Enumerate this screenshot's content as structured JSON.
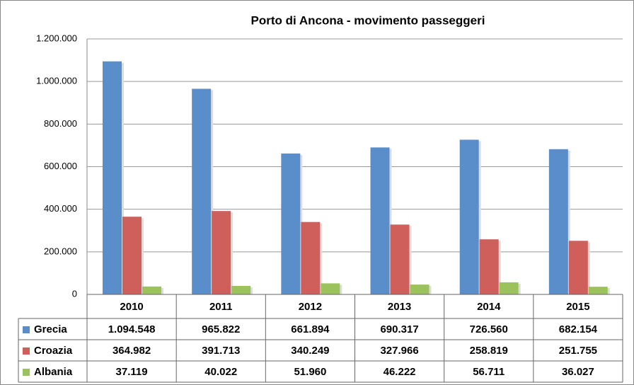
{
  "chart_data": {
    "type": "bar",
    "title": "Porto di Ancona - movimento passeggeri",
    "categories": [
      "2010",
      "2011",
      "2012",
      "2013",
      "2014",
      "2015"
    ],
    "series": [
      {
        "name": "Grecia",
        "color": "#5a8ecb",
        "values": [
          1094548,
          965822,
          661894,
          690317,
          726560,
          682154
        ],
        "value_labels": [
          "1.094.548",
          "965.822",
          "661.894",
          "690.317",
          "726.560",
          "682.154"
        ]
      },
      {
        "name": "Croazia",
        "color": "#cf5f5b",
        "values": [
          364982,
          391713,
          340249,
          327966,
          258819,
          251755
        ],
        "value_labels": [
          "364.982",
          "391.713",
          "340.249",
          "327.966",
          "258.819",
          "251.755"
        ]
      },
      {
        "name": "Albania",
        "color": "#9cc35b",
        "values": [
          37119,
          40022,
          51960,
          46222,
          56711,
          36027
        ],
        "value_labels": [
          "37.119",
          "40.022",
          "51.960",
          "46.222",
          "56.711",
          "36.027"
        ]
      }
    ],
    "ylim": [
      0,
      1200000
    ],
    "yticks": [
      0,
      {
        "value": 200000,
        "label": "200.000"
      },
      {
        "value": 400000,
        "label": "400.000"
      },
      {
        "value": 600000,
        "label": "600.000"
      },
      {
        "value": 800000,
        "label": "800.000"
      },
      {
        "value": 1000000,
        "label": "1.000.000"
      },
      {
        "value": 1200000,
        "label": "1.200.000"
      }
    ],
    "grid": true
  }
}
